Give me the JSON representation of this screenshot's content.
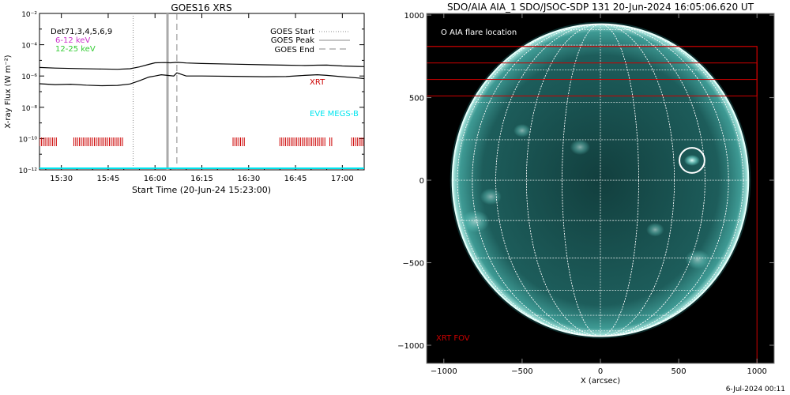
{
  "chart_data": [
    {
      "type": "line",
      "title": "GOES16 XRS",
      "xlabel": "Start Time (20-Jun-24 15:23:00)",
      "ylabel": "X-ray Flux (W m⁻²)",
      "y_scale": "log",
      "ylim": [
        1e-12,
        0.01
      ],
      "xlim": [
        "15:23",
        "17:07"
      ],
      "x_ticks": [
        "15:30",
        "15:45",
        "16:00",
        "16:15",
        "16:30",
        "16:45",
        "17:00"
      ],
      "y_ticks": [
        {
          "value": 0.01,
          "label": "10⁻²"
        },
        {
          "value": 0.0001,
          "label": "10⁻⁴"
        },
        {
          "value": 1e-06,
          "label": "10⁻⁶"
        },
        {
          "value": 1e-08,
          "label": "10⁻⁸"
        },
        {
          "value": 1e-10,
          "label": "10⁻¹⁰"
        },
        {
          "value": 1e-12,
          "label": "10⁻¹²"
        }
      ],
      "detector_text": "Det71,3,4,5,6,9",
      "series": [
        {
          "name": "6-12 keV",
          "color": "#cc33cc",
          "x": [],
          "y": []
        },
        {
          "name": "12-25 keV",
          "color": "#33cc33",
          "x": [],
          "y": []
        },
        {
          "name": "",
          "color": "#000000",
          "x": [
            "15:23",
            "15:28",
            "15:35",
            "15:42",
            "15:48",
            "15:52",
            "15:55",
            "15:58",
            "16:00",
            "16:03",
            "16:05",
            "16:07",
            "16:10",
            "16:15",
            "16:25",
            "16:35",
            "16:42",
            "16:48",
            "16:52",
            "16:55",
            "17:00",
            "17:05",
            "17:07"
          ],
          "y": [
            3.5e-06,
            3.2e-06,
            3e-06,
            2.8e-06,
            2.7e-06,
            2.9e-06,
            3.8e-06,
            5.5e-06,
            7e-06,
            7.2e-06,
            7e-06,
            7.5e-06,
            6.8e-06,
            6.3e-06,
            5.7e-06,
            5.2e-06,
            4.9e-06,
            4.7e-06,
            4.9e-06,
            5e-06,
            4.4e-06,
            4.1e-06,
            4e-06
          ]
        },
        {
          "name": "",
          "color": "#000000",
          "x": [
            "15:23",
            "15:28",
            "15:33",
            "15:38",
            "15:43",
            "15:48",
            "15:52",
            "15:55",
            "15:58",
            "16:00",
            "16:02",
            "16:04",
            "16:06",
            "16:07",
            "16:10",
            "16:15",
            "16:25",
            "16:35",
            "16:42",
            "16:48",
            "16:52",
            "16:55",
            "17:00",
            "17:05",
            "17:07"
          ],
          "y": [
            3.2e-07,
            2.8e-07,
            3e-07,
            2.6e-07,
            2.4e-07,
            2.5e-07,
            3.1e-07,
            5e-07,
            8.5e-07,
            1e-06,
            1.2e-06,
            1.1e-06,
            1e-06,
            1.6e-06,
            1e-06,
            1e-06,
            9.5e-07,
            9e-07,
            9.2e-07,
            1.1e-06,
            1.2e-06,
            1.1e-06,
            9e-07,
            7.5e-07,
            6.8e-07
          ]
        }
      ],
      "markers": [
        {
          "label": "GOES Start",
          "time": "15:53",
          "style": "dotted"
        },
        {
          "label": "GOES Peak",
          "time": "16:04",
          "style": "solid"
        },
        {
          "label": "GOES End",
          "time": "16:07",
          "style": "dashed"
        }
      ],
      "annotations": [
        {
          "text": "XRT",
          "color": "#cc0000"
        },
        {
          "text": "EVE MEGS-B",
          "color": "#00e5ee"
        }
      ],
      "coverage_bars_color": "#cc0000",
      "coverage_intervals": [
        [
          "15:23",
          "15:29"
        ],
        [
          "15:34",
          "15:50"
        ],
        [
          "16:25",
          "16:29"
        ],
        [
          "16:40",
          "16:55"
        ],
        [
          "16:56",
          "16:57"
        ],
        [
          "17:03",
          "17:07"
        ]
      ],
      "baseline_color": "#00e5ee"
    },
    {
      "type": "image",
      "title": "SDO/AIA AIA_1 SDO/JSOC-SDP 131 20-Jun-2024 16:05:06.620 UT",
      "xlabel": "X (arcsec)",
      "ylabel": "",
      "xlim": [
        -1110,
        1110
      ],
      "ylim": [
        -1110,
        1010
      ],
      "x_ticks": [
        -1000,
        -500,
        0,
        500,
        1000
      ],
      "y_ticks": [
        -1000,
        -500,
        0,
        500,
        1000
      ],
      "x_tick_labels": [
        "−1000",
        "−500",
        "0",
        "500",
        "1000"
      ],
      "y_tick_labels": [
        "−1000",
        "−500",
        "0",
        "500",
        "1000"
      ],
      "solar_radius": 945,
      "flare_location": {
        "x": 585,
        "y": 120
      },
      "legend_text": "O AIA flare location",
      "xrt_fov_label": "XRT FOV",
      "fov_rects": [
        {
          "x0": -1110,
          "x1": 1000,
          "y0": -1110,
          "y1": 810
        },
        {
          "x0": -1110,
          "x1": 1000,
          "y0": 510,
          "y1": 710
        },
        {
          "x0": -1110,
          "x1": 1000,
          "y0": 610,
          "y1": 810
        }
      ],
      "colors": {
        "disk": "#1a5a58",
        "grid": "#ffffff",
        "fov": "#cc0000"
      }
    }
  ],
  "footer_date": "6-Jul-2024 00:11"
}
